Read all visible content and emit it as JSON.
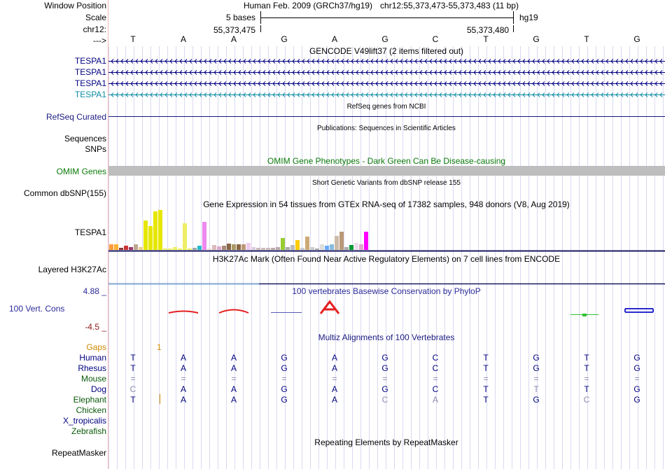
{
  "header": {
    "window_position_label": "Window Position",
    "scale_label": "Scale",
    "chrom_label": "chr12:",
    "strand_label": "--->",
    "assembly_text": "Human Feb. 2009 (GRCh37/hg19)",
    "position_text": "chr12:55,373,473-55,373,483 (11 bp)",
    "scale_text": "5 bases",
    "db_text": "hg19",
    "coord_left": "55,373,475",
    "coord_right": "55,373,480"
  },
  "bases": [
    "T",
    "A",
    "A",
    "G",
    "A",
    "G",
    "C",
    "T",
    "G",
    "T",
    "G"
  ],
  "tracks": {
    "gencode": {
      "title": "GENCODE V49lift37 (2 items filtered out)",
      "items": [
        {
          "label": "TESPA1",
          "color": "#000080"
        },
        {
          "label": "TESPA1",
          "color": "#000080"
        },
        {
          "label": "TESPA1",
          "color": "#000080"
        },
        {
          "label": "TESPA1",
          "color": "#0c8ca3"
        }
      ]
    },
    "refseq": {
      "label": "RefSeq Curated",
      "title": "RefSeq genes from NCBI",
      "color": "#1a1a80"
    },
    "publications": {
      "title": "Publications: Sequences in Scientific Articles",
      "labels": [
        "Sequences",
        "SNPs"
      ]
    },
    "omim": {
      "label": "OMIM Genes",
      "title": "OMIM Gene Phenotypes - Dark Green Can Be Disease-causing",
      "color": "#0a7a0a",
      "bar_color": "#bebebe"
    },
    "dbsnp": {
      "label": "Common dbSNP(155)",
      "title": "Short Genetic Variants from dbSNP release 155"
    },
    "gtex": {
      "label": "TESPA1",
      "title": "Gene Expression in 54 tissues from GTEx RNA-seq of 17382 samples, 948 donors (V8, Aug 2019)"
    },
    "h3k27ac": {
      "label": "Layered H3K27Ac",
      "title": "H3K27Ac Mark (Often Found Near Active Regulatory Elements) on 7 cell lines from ENCODE"
    },
    "conservation": {
      "label": "100 Vert. Cons",
      "max": "4.88 _",
      "min": "-4.5 _",
      "title": "100 vertebrates Basewise Conservation by PhyloP",
      "label_color": "#2b2b99",
      "min_color": "#8a1a1a"
    },
    "multiz": {
      "title": "Multiz Alignments of 100 Vertebrates",
      "gaps_label": "Gaps",
      "gaps_value": "1",
      "species": [
        {
          "name": "Human",
          "color": "#000080",
          "bases": [
            "T",
            "A",
            "A",
            "G",
            "A",
            "G",
            "C",
            "T",
            "G",
            "T",
            "G"
          ]
        },
        {
          "name": "Rhesus",
          "color": "#000080",
          "bases": [
            "T",
            "A",
            "A",
            "G",
            "A",
            "G",
            "C",
            "T",
            "G",
            "T",
            "G"
          ]
        },
        {
          "name": "Mouse",
          "color": "#0a5a0a",
          "bases": [
            "=",
            "=",
            "=",
            "=",
            "=",
            "=",
            "=",
            "=",
            "=",
            "=",
            "="
          ]
        },
        {
          "name": "Dog",
          "color": "#000080",
          "bases": [
            "C",
            "A",
            "A",
            "G",
            "A",
            "G",
            "C",
            "T",
            "T",
            "T",
            "G"
          ]
        },
        {
          "name": "Elephant",
          "color": "#0a5a0a",
          "bases": [
            "T",
            "A",
            "A",
            "G",
            "A",
            "C",
            "A",
            "T",
            "G",
            "C",
            "G"
          ]
        },
        {
          "name": "Chicken",
          "color": "#0a5a0a",
          "bases": []
        },
        {
          "name": "X_tropicalis",
          "color": "#000080",
          "bases": []
        },
        {
          "name": "Zebrafish",
          "color": "#0a5a0a",
          "bases": []
        }
      ]
    },
    "repeatmasker": {
      "label": "RepeatMasker",
      "title": "Repeating Elements by RepeatMasker"
    }
  }
}
